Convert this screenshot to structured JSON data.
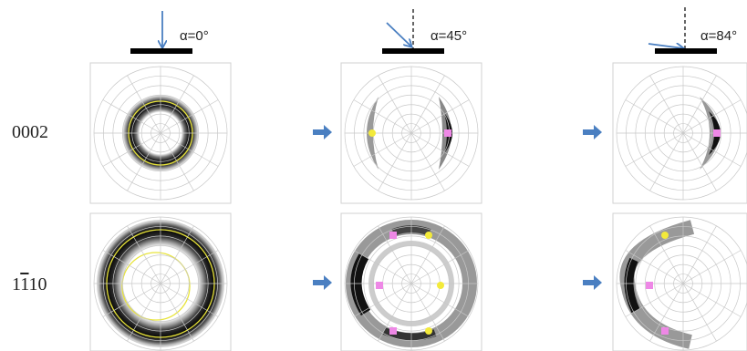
{
  "colors": {
    "arrow_blue": "#4a7fc1",
    "marker_yellow": "#f3ea3a",
    "marker_pink": "#ee88e6",
    "ring_yellow": "#e8e43a",
    "grid": "#c8c8c8",
    "plate": "#000000"
  },
  "columns": [
    {
      "angle_label": "α=0°"
    },
    {
      "angle_label": "α=45°"
    },
    {
      "angle_label": "α=84°"
    }
  ],
  "rows": [
    {
      "label": "0002"
    },
    {
      "label": "10",
      "label_bar_digit": "1",
      "label_tail": "0"
    }
  ],
  "icons": [
    "incident-beam-arrow-icon",
    "transition-arrow-icon"
  ]
}
